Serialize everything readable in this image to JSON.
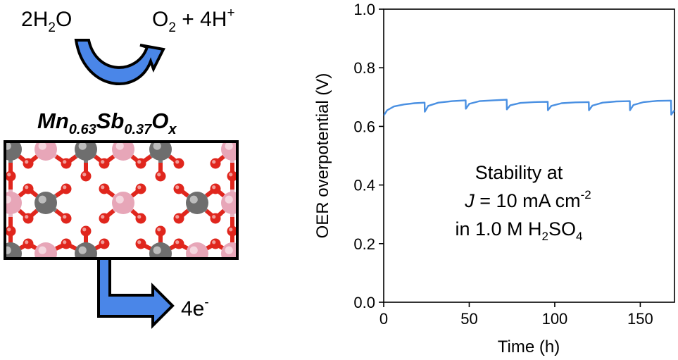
{
  "reaction": {
    "reactant": {
      "coef": "2",
      "base1": "H",
      "sub1": "2",
      "base2": "O"
    },
    "product": {
      "base1": "O",
      "sub1": "2",
      "rest": " + 4H",
      "sup": "+"
    }
  },
  "catalyst": {
    "formula": [
      {
        "text": "Mn",
        "sub": "0.63"
      },
      {
        "text": "Sb",
        "sub": "0.37"
      },
      {
        "text": "O",
        "sub": "x"
      }
    ],
    "atom_colors": {
      "metal_mn": "#6e6e6e",
      "metal_sb": "#e7a6b8",
      "oxygen": "#e0261d"
    }
  },
  "electron_output": {
    "text": "4e",
    "sup": "-"
  },
  "arrow_color": "#4a86e8",
  "chart_data": {
    "type": "line",
    "xlabel": "Time (h)",
    "ylabel": "OER overpotential (V)",
    "xlim": [
      0,
      170
    ],
    "ylim": [
      0.0,
      1.0
    ],
    "xticks": [
      "0",
      "50",
      "100",
      "150"
    ],
    "yticks": [
      "0.0",
      "0.2",
      "0.4",
      "0.6",
      "0.8",
      "1.0"
    ],
    "grid": false,
    "series": [
      {
        "color": "#4a90e2",
        "segments": [
          {
            "x": [
              0,
              2,
              6,
              12,
              18,
              23.9
            ],
            "y": [
              0.637,
              0.655,
              0.668,
              0.675,
              0.679,
              0.681
            ]
          },
          {
            "x": [
              24,
              26,
              32,
              40,
              47.9
            ],
            "y": [
              0.65,
              0.67,
              0.681,
              0.686,
              0.689
            ]
          },
          {
            "x": [
              48,
              50,
              56,
              64,
              71.9
            ],
            "y": [
              0.66,
              0.677,
              0.686,
              0.689,
              0.691
            ]
          },
          {
            "x": [
              72,
              74,
              80,
              88,
              95.9
            ],
            "y": [
              0.658,
              0.672,
              0.68,
              0.683,
              0.684
            ]
          },
          {
            "x": [
              96,
              98,
              104,
              112,
              119.9
            ],
            "y": [
              0.655,
              0.67,
              0.679,
              0.682,
              0.683
            ]
          },
          {
            "x": [
              120,
              122,
              128,
              136,
              143.9
            ],
            "y": [
              0.655,
              0.671,
              0.681,
              0.685,
              0.686
            ]
          },
          {
            "x": [
              144,
              146,
              152,
              160,
              168
            ],
            "y": [
              0.655,
              0.673,
              0.683,
              0.687,
              0.688
            ]
          },
          {
            "x": [
              168.1,
              170
            ],
            "y": [
              0.64,
              0.655
            ]
          }
        ]
      }
    ],
    "annotation": {
      "line1": "Stability at",
      "line2_italic": "J",
      "line2_rest": " = 10 mA cm",
      "line2_sup": "-2",
      "line3_prefix": "in 1.0 M H",
      "line3_sub1": "2",
      "line3_mid": "SO",
      "line3_sub2": "4"
    }
  }
}
